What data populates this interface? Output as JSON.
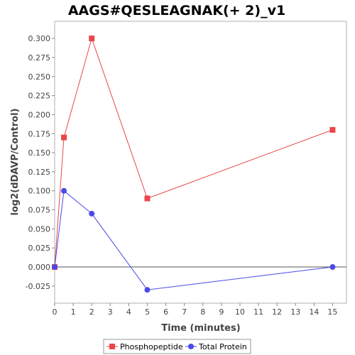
{
  "chart_data": {
    "type": "line",
    "title": "AAGS#QESLEAGNAK(+ 2)_v1",
    "xlabel": "Time (minutes)",
    "ylabel": "log2(dDAVP/Control)",
    "xlim": [
      0,
      15.75
    ],
    "ylim": [
      -0.0475,
      0.3225
    ],
    "x_ticks": [
      0,
      1,
      2,
      3,
      4,
      5,
      6,
      7,
      8,
      9,
      10,
      11,
      12,
      13,
      14,
      15
    ],
    "y_ticks": [
      -0.025,
      0.0,
      0.025,
      0.05,
      0.075,
      0.1,
      0.125,
      0.15,
      0.175,
      0.2,
      0.225,
      0.25,
      0.275,
      0.3
    ],
    "y_tick_labels": [
      "-0.025",
      "0.000",
      "0.025",
      "0.050",
      "0.075",
      "0.100",
      "0.125",
      "0.150",
      "0.175",
      "0.200",
      "0.225",
      "0.250",
      "0.275",
      "0.300"
    ],
    "grid": false,
    "zero_line": true,
    "legend_position": "bottom",
    "series": [
      {
        "name": "Phosphopeptide",
        "color": "#e8474a",
        "marker": "square",
        "x": [
          0,
          0.5,
          2,
          5,
          15
        ],
        "y": [
          0.0,
          0.17,
          0.3,
          0.09,
          0.18
        ]
      },
      {
        "name": "Total Protein",
        "color": "#4a4ae8",
        "marker": "circle",
        "x": [
          0,
          0.5,
          2,
          5,
          15
        ],
        "y": [
          0.0,
          0.1,
          0.07,
          -0.03,
          0.0
        ]
      }
    ]
  }
}
